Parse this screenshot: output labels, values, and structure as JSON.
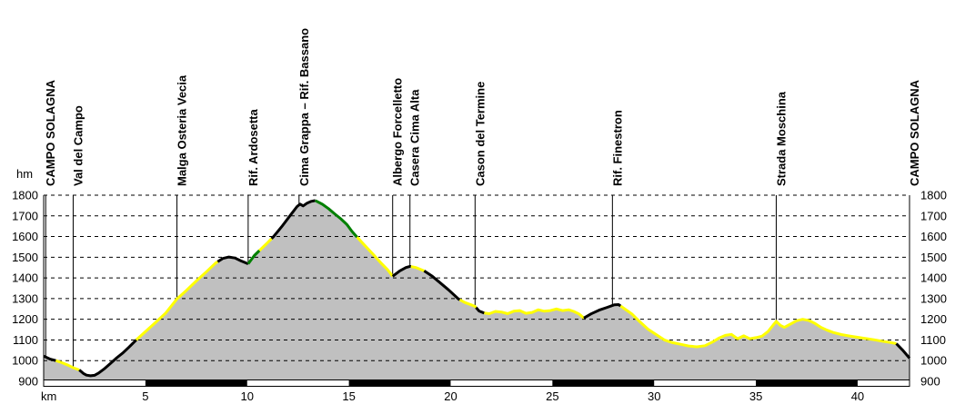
{
  "chart_data": {
    "type": "area",
    "title": "",
    "xlabel": "km",
    "ylabel": "hm",
    "xlim": [
      0,
      42.55
    ],
    "ylim": [
      900,
      1800
    ],
    "yticks": [
      900,
      1000,
      1100,
      1200,
      1300,
      1400,
      1500,
      1600,
      1700,
      1800
    ],
    "xticks": [
      5,
      10,
      15,
      20,
      25,
      30,
      35,
      40
    ],
    "grid": "horizontal-dashed",
    "legend_position": "none",
    "colors": {
      "fill": "#c0c0c0",
      "yellow": "#ffff00",
      "green": "#008000",
      "black": "#000000",
      "background": "#ffffff"
    },
    "profile_km_elevation": [
      [
        0.0,
        1022
      ],
      [
        0.3,
        1008
      ],
      [
        0.6,
        1000
      ],
      [
        0.9,
        990
      ],
      [
        1.2,
        978
      ],
      [
        1.45,
        966
      ],
      [
        1.75,
        955
      ],
      [
        1.95,
        938
      ],
      [
        2.1,
        930
      ],
      [
        2.3,
        927
      ],
      [
        2.5,
        929
      ],
      [
        2.7,
        940
      ],
      [
        3.0,
        962
      ],
      [
        3.3,
        988
      ],
      [
        3.6,
        1014
      ],
      [
        3.9,
        1038
      ],
      [
        4.2,
        1066
      ],
      [
        4.55,
        1100
      ],
      [
        5.0,
        1140
      ],
      [
        5.5,
        1185
      ],
      [
        6.0,
        1230
      ],
      [
        6.55,
        1298
      ],
      [
        7.0,
        1338
      ],
      [
        7.5,
        1385
      ],
      [
        8.0,
        1430
      ],
      [
        8.45,
        1472
      ],
      [
        8.8,
        1494
      ],
      [
        9.1,
        1501
      ],
      [
        9.4,
        1496
      ],
      [
        9.7,
        1482
      ],
      [
        10.05,
        1468
      ],
      [
        10.35,
        1508
      ],
      [
        10.6,
        1532
      ],
      [
        10.95,
        1565
      ],
      [
        11.3,
        1600
      ],
      [
        11.7,
        1648
      ],
      [
        12.1,
        1700
      ],
      [
        12.45,
        1745
      ],
      [
        12.6,
        1757
      ],
      [
        12.75,
        1748
      ],
      [
        12.95,
        1762
      ],
      [
        13.15,
        1770
      ],
      [
        13.35,
        1774
      ],
      [
        13.7,
        1756
      ],
      [
        14.0,
        1735
      ],
      [
        14.3,
        1710
      ],
      [
        14.6,
        1686
      ],
      [
        14.9,
        1658
      ],
      [
        15.15,
        1625
      ],
      [
        15.4,
        1597
      ],
      [
        15.8,
        1555
      ],
      [
        16.2,
        1513
      ],
      [
        16.6,
        1470
      ],
      [
        16.9,
        1440
      ],
      [
        17.15,
        1408
      ],
      [
        17.5,
        1434
      ],
      [
        17.8,
        1450
      ],
      [
        18.0,
        1456
      ],
      [
        18.3,
        1450
      ],
      [
        18.7,
        1434
      ],
      [
        19.1,
        1408
      ],
      [
        19.5,
        1375
      ],
      [
        19.9,
        1342
      ],
      [
        20.4,
        1297
      ],
      [
        20.7,
        1281
      ],
      [
        21.0,
        1270
      ],
      [
        21.2,
        1262
      ],
      [
        21.4,
        1240
      ],
      [
        21.65,
        1230
      ],
      [
        21.9,
        1227
      ],
      [
        22.2,
        1238
      ],
      [
        22.5,
        1235
      ],
      [
        22.8,
        1227
      ],
      [
        23.1,
        1239
      ],
      [
        23.4,
        1242
      ],
      [
        23.7,
        1229
      ],
      [
        24.0,
        1233
      ],
      [
        24.3,
        1246
      ],
      [
        24.6,
        1239
      ],
      [
        24.9,
        1242
      ],
      [
        25.2,
        1250
      ],
      [
        25.5,
        1242
      ],
      [
        25.8,
        1246
      ],
      [
        26.05,
        1238
      ],
      [
        26.3,
        1226
      ],
      [
        26.55,
        1206
      ],
      [
        26.9,
        1226
      ],
      [
        27.3,
        1244
      ],
      [
        27.7,
        1258
      ],
      [
        28.05,
        1270
      ],
      [
        28.25,
        1271
      ],
      [
        28.5,
        1254
      ],
      [
        28.9,
        1226
      ],
      [
        29.3,
        1188
      ],
      [
        29.7,
        1152
      ],
      [
        30.1,
        1126
      ],
      [
        30.5,
        1100
      ],
      [
        30.9,
        1087
      ],
      [
        31.3,
        1079
      ],
      [
        31.7,
        1071
      ],
      [
        32.1,
        1067
      ],
      [
        32.5,
        1072
      ],
      [
        32.9,
        1092
      ],
      [
        33.2,
        1110
      ],
      [
        33.5,
        1122
      ],
      [
        33.8,
        1127
      ],
      [
        34.1,
        1106
      ],
      [
        34.4,
        1120
      ],
      [
        34.7,
        1106
      ],
      [
        35.0,
        1111
      ],
      [
        35.3,
        1118
      ],
      [
        35.6,
        1141
      ],
      [
        35.85,
        1172
      ],
      [
        36.0,
        1190
      ],
      [
        36.2,
        1171
      ],
      [
        36.4,
        1161
      ],
      [
        36.7,
        1177
      ],
      [
        37.0,
        1193
      ],
      [
        37.3,
        1200
      ],
      [
        37.6,
        1194
      ],
      [
        37.9,
        1180
      ],
      [
        38.2,
        1161
      ],
      [
        38.5,
        1147
      ],
      [
        38.8,
        1136
      ],
      [
        39.2,
        1126
      ],
      [
        39.6,
        1119
      ],
      [
        40.0,
        1113
      ],
      [
        40.4,
        1107
      ],
      [
        40.8,
        1101
      ],
      [
        41.2,
        1094
      ],
      [
        41.6,
        1088
      ],
      [
        41.9,
        1082
      ],
      [
        42.2,
        1052
      ],
      [
        42.55,
        1012
      ]
    ],
    "surface_segments": [
      {
        "from_km": 0.0,
        "to_km": 0.6,
        "color": "black"
      },
      {
        "from_km": 0.6,
        "to_km": 1.75,
        "color": "yellow"
      },
      {
        "from_km": 1.75,
        "to_km": 4.55,
        "color": "black"
      },
      {
        "from_km": 4.55,
        "to_km": 8.55,
        "color": "yellow"
      },
      {
        "from_km": 8.55,
        "to_km": 10.05,
        "color": "black"
      },
      {
        "from_km": 10.05,
        "to_km": 10.6,
        "color": "green"
      },
      {
        "from_km": 10.6,
        "to_km": 11.2,
        "color": "yellow"
      },
      {
        "from_km": 11.2,
        "to_km": 13.35,
        "color": "black"
      },
      {
        "from_km": 13.35,
        "to_km": 15.4,
        "color": "green"
      },
      {
        "from_km": 15.4,
        "to_km": 17.15,
        "color": "yellow"
      },
      {
        "from_km": 17.15,
        "to_km": 18.05,
        "color": "black"
      },
      {
        "from_km": 18.05,
        "to_km": 18.7,
        "color": "yellow"
      },
      {
        "from_km": 18.7,
        "to_km": 20.45,
        "color": "black"
      },
      {
        "from_km": 20.45,
        "to_km": 21.25,
        "color": "yellow"
      },
      {
        "from_km": 21.25,
        "to_km": 21.65,
        "color": "black"
      },
      {
        "from_km": 21.65,
        "to_km": 26.55,
        "color": "yellow"
      },
      {
        "from_km": 26.55,
        "to_km": 28.35,
        "color": "black"
      },
      {
        "from_km": 28.35,
        "to_km": 41.9,
        "color": "yellow"
      },
      {
        "from_km": 41.9,
        "to_km": 42.55,
        "color": "black"
      }
    ],
    "waypoints": [
      {
        "name": "CAMPO SOLAGNA",
        "km": 0.1
      },
      {
        "name": "Val del Campo",
        "km": 1.45
      },
      {
        "name": "Malga Osteria Vecia",
        "km": 6.55
      },
      {
        "name": "Rif. Ardosetta",
        "km": 10.05
      },
      {
        "name": "Cima Grappa – Rif. Bassano",
        "km": 12.55
      },
      {
        "name": "Albergo Forcelletto",
        "km": 17.15
      },
      {
        "name": "Casera Cima Alta",
        "km": 18.0
      },
      {
        "name": "Cason del Termine",
        "km": 21.2
      },
      {
        "name": "Rif. Finestron",
        "km": 27.95
      },
      {
        "name": "Strada Moschina",
        "km": 36.0
      },
      {
        "name": "CAMPO SOLAGNA",
        "km": 42.55
      }
    ],
    "scale_bar": {
      "interval_km": 5,
      "pattern": [
        "white",
        "black"
      ]
    }
  }
}
